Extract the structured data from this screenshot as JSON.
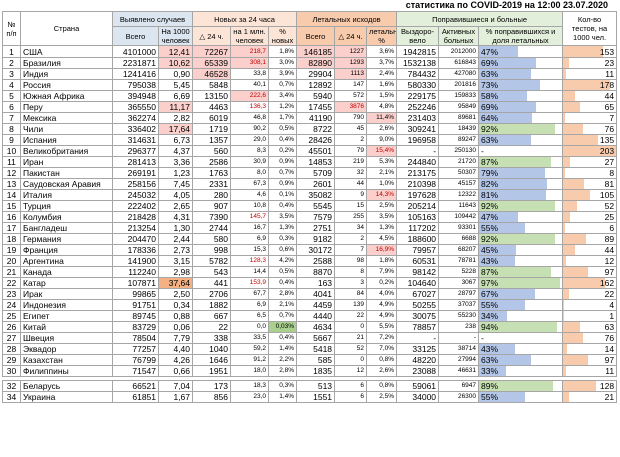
{
  "caption": "статистика по COVID-2019 на 12:00 23.07.2020",
  "headers": {
    "num": "№ п/п",
    "country": "Страна",
    "detected": "Выявлено случаев",
    "detected_total": "Всего",
    "detected_per1000": "На 1000 человек",
    "new24": "Новых за 24 часа",
    "new_delta": "△ 24 ч.",
    "new_per1m": "на 1 млн. человек",
    "new_pct": "% новых",
    "deaths": "Летальных исходов",
    "deaths_total": "Всего",
    "deaths_delta": "△ 24 ч.",
    "deaths_pct": "летальный %",
    "recovered_sick": "Поправившиеся и больные",
    "recovered": "Выздоро-вело",
    "active": "Активных больных",
    "recovered_pct": "% поправившихся и доля летальных",
    "tests": "Кол-во тестов, на 1000 чел."
  },
  "colors": {
    "header_blue": "#dce6f1",
    "header_orange": "#fce4d6",
    "header_red": "#f8cbad",
    "header_green": "#e2efda",
    "highlight_red": "#f4b183",
    "highlight_pink": "#fbd0cc",
    "highlight_green": "#a9d08e",
    "bar_blue": "#b4c6e7",
    "bar_green": "#c6e0b4",
    "bar_red": "#f8cbad"
  },
  "rows": [
    {
      "n": "1",
      "country": "США",
      "total": "4101000",
      "per1000": "12,41",
      "d24": "72267",
      "per1m": "218,7",
      "pctNew": "1,8%",
      "deaths": "146185",
      "dd24": "1227",
      "dpct": "3,6%",
      "rec": "1942815",
      "active": "2012000",
      "recPct": "47%",
      "recPctVal": 47,
      "tests": "153",
      "testsVal": 153
    },
    {
      "n": "2",
      "country": "Бразилия",
      "total": "2231871",
      "per1000": "10,62",
      "d24": "65339",
      "per1m": "308,1",
      "pctNew": "3,0%",
      "deaths": "82890",
      "dd24": "1293",
      "dpct": "3,7%",
      "rec": "1532138",
      "active": "616843",
      "recPct": "69%",
      "recPctVal": 69,
      "tests": "23",
      "testsVal": 23
    },
    {
      "n": "3",
      "country": "Индия",
      "total": "1241416",
      "per1000": "0,90",
      "d24": "46528",
      "per1m": "33,8",
      "pctNew": "3,9%",
      "deaths": "29904",
      "dd24": "1113",
      "dpct": "2,4%",
      "rec": "784432",
      "active": "427080",
      "recPct": "63%",
      "recPctVal": 63,
      "tests": "11",
      "testsVal": 11
    },
    {
      "n": "4",
      "country": "Россия",
      "total": "795038",
      "per1000": "5,45",
      "d24": "5848",
      "per1m": "40,1",
      "pctNew": "0,7%",
      "deaths": "12892",
      "dd24": "147",
      "dpct": "1,6%",
      "rec": "580330",
      "active": "201816",
      "recPct": "73%",
      "recPctVal": 73,
      "tests": "178",
      "testsVal": 178
    },
    {
      "n": "5",
      "country": "Южная Африка",
      "total": "394948",
      "per1000": "6,69",
      "d24": "13150",
      "per1m": "222,6",
      "pctNew": "3,4%",
      "deaths": "5940",
      "dd24": "572",
      "dpct": "1,5%",
      "rec": "229175",
      "active": "159833",
      "recPct": "58%",
      "recPctVal": 58,
      "tests": "44",
      "testsVal": 44
    },
    {
      "n": "6",
      "country": "Перу",
      "total": "365550",
      "per1000": "11,17",
      "d24": "4463",
      "per1m": "136,3",
      "pctNew": "1,2%",
      "deaths": "17455",
      "dd24": "3876",
      "dpct": "4,8%",
      "rec": "252246",
      "active": "95849",
      "recPct": "69%",
      "recPctVal": 69,
      "tests": "65",
      "testsVal": 65
    },
    {
      "n": "7",
      "country": "Мексика",
      "total": "362274",
      "per1000": "2,82",
      "d24": "6019",
      "per1m": "46,8",
      "pctNew": "1,7%",
      "deaths": "41190",
      "dd24": "790",
      "dpct": "11,4%",
      "rec": "231403",
      "active": "89681",
      "recPct": "64%",
      "recPctVal": 64,
      "tests": "7",
      "testsVal": 7
    },
    {
      "n": "8",
      "country": "Чили",
      "total": "336402",
      "per1000": "17,64",
      "d24": "1719",
      "per1m": "90,2",
      "pctNew": "0,5%",
      "deaths": "8722",
      "dd24": "45",
      "dpct": "2,6%",
      "rec": "309241",
      "active": "18439",
      "recPct": "92%",
      "recPctVal": 92,
      "tests": "76",
      "testsVal": 76
    },
    {
      "n": "9",
      "country": "Испания",
      "total": "314631",
      "per1000": "6,73",
      "d24": "1357",
      "per1m": "29,0",
      "pctNew": "0,4%",
      "deaths": "28426",
      "dd24": "2",
      "dpct": "9,0%",
      "rec": "196958",
      "active": "89247",
      "recPct": "63%",
      "recPctVal": 63,
      "tests": "135",
      "testsVal": 135
    },
    {
      "n": "10",
      "country": "Великобритания",
      "total": "296377",
      "per1000": "4,37",
      "d24": "560",
      "per1m": "8,3",
      "pctNew": "0,2%",
      "deaths": "45501",
      "dd24": "79",
      "dpct": "15,4%",
      "rec": "-",
      "active": "250130",
      "recPct": "-",
      "recPctVal": 0,
      "tests": "203",
      "testsVal": 203
    },
    {
      "n": "11",
      "country": "Иран",
      "total": "281413",
      "per1000": "3,36",
      "d24": "2586",
      "per1m": "30,9",
      "pctNew": "0,9%",
      "deaths": "14853",
      "dd24": "219",
      "dpct": "5,3%",
      "rec": "244840",
      "active": "21720",
      "recPct": "87%",
      "recPctVal": 87,
      "tests": "27",
      "testsVal": 27
    },
    {
      "n": "12",
      "country": "Пакистан",
      "total": "269191",
      "per1000": "1,23",
      "d24": "1763",
      "per1m": "8,0",
      "pctNew": "0,7%",
      "deaths": "5709",
      "dd24": "32",
      "dpct": "2,1%",
      "rec": "213175",
      "active": "50307",
      "recPct": "79%",
      "recPctVal": 79,
      "tests": "8",
      "testsVal": 8
    },
    {
      "n": "13",
      "country": "Саудовская Аравия",
      "total": "258156",
      "per1000": "7,45",
      "d24": "2331",
      "per1m": "67,3",
      "pctNew": "0,9%",
      "deaths": "2601",
      "dd24": "44",
      "dpct": "1,0%",
      "rec": "210398",
      "active": "45157",
      "recPct": "82%",
      "recPctVal": 82,
      "tests": "81",
      "testsVal": 81
    },
    {
      "n": "14",
      "country": "Италия",
      "total": "245032",
      "per1000": "4,05",
      "d24": "280",
      "per1m": "4,6",
      "pctNew": "0,1%",
      "deaths": "35082",
      "dd24": "9",
      "dpct": "14,3%",
      "rec": "197628",
      "active": "12322",
      "recPct": "81%",
      "recPctVal": 81,
      "tests": "105",
      "testsVal": 105
    },
    {
      "n": "15",
      "country": "Турция",
      "total": "222402",
      "per1000": "2,65",
      "d24": "907",
      "per1m": "10,8",
      "pctNew": "0,4%",
      "deaths": "5545",
      "dd24": "15",
      "dpct": "2,5%",
      "rec": "205214",
      "active": "11643",
      "recPct": "92%",
      "recPctVal": 92,
      "tests": "52",
      "testsVal": 52
    },
    {
      "n": "16",
      "country": "Колумбия",
      "total": "218428",
      "per1000": "4,31",
      "d24": "7390",
      "per1m": "145,7",
      "pctNew": "3,5%",
      "deaths": "7579",
      "dd24": "255",
      "dpct": "3,5%",
      "rec": "105163",
      "active": "109442",
      "recPct": "47%",
      "recPctVal": 47,
      "tests": "25",
      "testsVal": 25
    },
    {
      "n": "17",
      "country": "Бангладеш",
      "total": "213254",
      "per1000": "1,30",
      "d24": "2744",
      "per1m": "16,7",
      "pctNew": "1,3%",
      "deaths": "2751",
      "dd24": "34",
      "dpct": "1,3%",
      "rec": "117202",
      "active": "93301",
      "recPct": "55%",
      "recPctVal": 55,
      "tests": "6",
      "testsVal": 6
    },
    {
      "n": "18",
      "country": "Германия",
      "total": "204470",
      "per1000": "2,44",
      "d24": "580",
      "per1m": "6,9",
      "pctNew": "0,3%",
      "deaths": "9182",
      "dd24": "2",
      "dpct": "4,5%",
      "rec": "188600",
      "active": "6688",
      "recPct": "92%",
      "recPctVal": 92,
      "tests": "89",
      "testsVal": 89
    },
    {
      "n": "19",
      "country": "Франция",
      "total": "178336",
      "per1000": "2,73",
      "d24": "998",
      "per1m": "15,3",
      "pctNew": "0,6%",
      "deaths": "30172",
      "dd24": "7",
      "dpct": "16,9%",
      "rec": "79957",
      "active": "68207",
      "recPct": "45%",
      "recPctVal": 45,
      "tests": "44",
      "testsVal": 44
    },
    {
      "n": "20",
      "country": "Аргентина",
      "total": "141900",
      "per1000": "3,15",
      "d24": "5782",
      "per1m": "128,3",
      "pctNew": "4,2%",
      "deaths": "2588",
      "dpct": "1,8%",
      "dd24": "98",
      "rec": "60531",
      "active": "78781",
      "recPct": "43%",
      "recPctVal": 43,
      "tests": "12",
      "testsVal": 12
    },
    {
      "n": "21",
      "country": "Канада",
      "total": "112240",
      "per1000": "2,98",
      "d24": "543",
      "per1m": "14,4",
      "pctNew": "0,5%",
      "deaths": "8870",
      "dd24": "8",
      "dpct": "7,9%",
      "rec": "98142",
      "active": "5228",
      "recPct": "87%",
      "recPctVal": 87,
      "tests": "97",
      "testsVal": 97
    },
    {
      "n": "22",
      "country": "Катар",
      "total": "107871",
      "per1000": "37,64",
      "d24": "441",
      "per1m": "153,9",
      "pctNew": "0,4%",
      "deaths": "163",
      "dd24": "3",
      "dpct": "0,2%",
      "rec": "104640",
      "active": "3067",
      "recPct": "97%",
      "recPctVal": 97,
      "tests": "162",
      "testsVal": 162
    },
    {
      "n": "23",
      "country": "Ирак",
      "total": "99865",
      "per1000": "2,50",
      "d24": "2706",
      "per1m": "67,7",
      "pctNew": "2,8%",
      "deaths": "4041",
      "dd24": "84",
      "dpct": "4,0%",
      "rec": "67027",
      "active": "28797",
      "recPct": "67%",
      "recPctVal": 67,
      "tests": "22",
      "testsVal": 22
    },
    {
      "n": "24",
      "country": "Индонезия",
      "total": "91751",
      "per1000": "0,34",
      "d24": "1882",
      "per1m": "6,9",
      "pctNew": "2,1%",
      "deaths": "4459",
      "dd24": "139",
      "dpct": "4,9%",
      "rec": "50255",
      "active": "37037",
      "recPct": "55%",
      "recPctVal": 55,
      "tests": "4",
      "testsVal": 4
    },
    {
      "n": "25",
      "country": "Египет",
      "total": "89745",
      "per1000": "0,88",
      "d24": "667",
      "per1m": "6,5",
      "pctNew": "0,7%",
      "deaths": "4440",
      "dd24": "22",
      "dpct": "4,9%",
      "rec": "30075",
      "active": "55230",
      "recPct": "34%",
      "recPctVal": 34,
      "tests": "1",
      "testsVal": 1
    },
    {
      "n": "26",
      "country": "Китай",
      "total": "83729",
      "per1000": "0,06",
      "d24": "22",
      "per1m": "0,0",
      "pctNew": "0,03%",
      "deaths": "4634",
      "dd24": "0",
      "dpct": "5,5%",
      "rec": "78857",
      "active": "238",
      "recPct": "94%",
      "recPctVal": 94,
      "tests": "63",
      "testsVal": 63
    },
    {
      "n": "27",
      "country": "Швеция",
      "total": "78504",
      "per1000": "7,79",
      "d24": "338",
      "per1m": "33,5",
      "pctNew": "0,4%",
      "deaths": "5667",
      "dd24": "21",
      "dpct": "7,2%",
      "rec": "-",
      "active": "-",
      "recPct": "-",
      "recPctVal": 0,
      "tests": "76",
      "testsVal": 76
    },
    {
      "n": "28",
      "country": "Эквадор",
      "total": "77257",
      "per1000": "4,40",
      "d24": "1040",
      "per1m": "59,2",
      "pctNew": "1,4%",
      "deaths": "5418",
      "dd24": "52",
      "dpct": "7,0%",
      "rec": "33125",
      "active": "38714",
      "recPct": "43%",
      "recPctVal": 43,
      "tests": "14",
      "testsVal": 14
    },
    {
      "n": "29",
      "country": "Казахстан",
      "total": "76799",
      "per1000": "4,26",
      "d24": "1646",
      "per1m": "91,2",
      "pctNew": "2,2%",
      "deaths": "585",
      "dd24": "0",
      "dpct": "0,8%",
      "rec": "48220",
      "active": "27994",
      "recPct": "63%",
      "recPctVal": 63,
      "tests": "97",
      "testsVal": 97
    },
    {
      "n": "30",
      "country": "Филиппины",
      "total": "71547",
      "per1000": "0,66",
      "d24": "1951",
      "per1m": "18,0",
      "pctNew": "2,8%",
      "deaths": "1835",
      "dd24": "12",
      "dpct": "2,6%",
      "rec": "23088",
      "active": "46631",
      "recPct": "33%",
      "recPctVal": 33,
      "tests": "11",
      "testsVal": 11
    },
    {
      "n": "32",
      "country": "Беларусь",
      "total": "66521",
      "per1000": "7,04",
      "d24": "173",
      "per1m": "18,3",
      "pctNew": "0,3%",
      "deaths": "513",
      "dd24": "6",
      "dpct": "0,8%",
      "rec": "59061",
      "active": "6947",
      "recPct": "89%",
      "recPctVal": 89,
      "tests": "128",
      "testsVal": 128
    },
    {
      "n": "34",
      "country": "Украина",
      "total": "61851",
      "per1000": "1,67",
      "d24": "856",
      "per1m": "23,0",
      "pctNew": "1,4%",
      "deaths": "1551",
      "dd24": "6",
      "dpct": "2,5%",
      "rec": "34000",
      "active": "26300",
      "recPct": "55%",
      "recPctVal": 55,
      "tests": "21",
      "testsVal": 21
    }
  ]
}
